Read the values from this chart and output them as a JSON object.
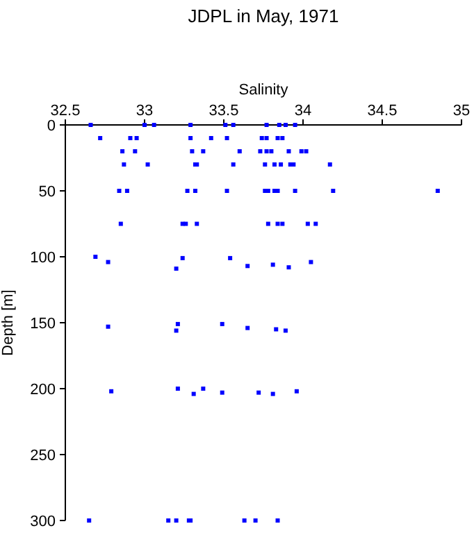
{
  "chart_data": {
    "type": "scatter",
    "title": "JDPL in May, 1971",
    "xlabel": "Salinity",
    "ylabel": "Depth [m]",
    "marker": "square",
    "grid": false,
    "xlim": [
      32.5,
      35
    ],
    "xticks": [
      32.5,
      33,
      33.5,
      34,
      34.5,
      35
    ],
    "ylim": [
      300,
      0
    ],
    "yticks": [
      0,
      50,
      100,
      150,
      200,
      250,
      300
    ],
    "series": [
      {
        "color": "#0000ff",
        "x": [
          32.66,
          33.0,
          33.06,
          33.29,
          33.51,
          33.56,
          33.77,
          33.85,
          33.89,
          33.95,
          32.72,
          32.91,
          32.95,
          33.29,
          33.42,
          33.52,
          33.74,
          33.77,
          33.84,
          33.87,
          32.86,
          32.94,
          33.3,
          33.37,
          33.6,
          33.73,
          33.77,
          33.8,
          33.91,
          33.99,
          34.02,
          32.87,
          33.02,
          33.32,
          33.33,
          33.56,
          33.76,
          33.82,
          33.86,
          33.92,
          33.94,
          34.17,
          32.84,
          32.89,
          33.27,
          33.32,
          33.52,
          33.76,
          33.78,
          33.82,
          33.84,
          33.95,
          34.19,
          34.85,
          32.85,
          33.24,
          33.26,
          33.33,
          33.78,
          33.84,
          33.87,
          34.03,
          34.08,
          32.69,
          32.77,
          33.2,
          33.24,
          33.54,
          33.65,
          33.81,
          33.91,
          34.05,
          32.77,
          33.2,
          33.21,
          33.49,
          33.65,
          33.83,
          33.89,
          32.79,
          33.21,
          33.31,
          33.37,
          33.49,
          33.72,
          33.81,
          33.96,
          32.65,
          33.15,
          33.2,
          33.28,
          33.29,
          33.63,
          33.7,
          33.84
        ],
        "values": [
          0,
          0,
          0,
          0,
          0,
          0,
          0,
          0,
          0,
          0,
          10,
          10,
          10,
          10,
          10,
          10,
          10,
          10,
          10,
          10,
          20,
          20,
          20,
          20,
          20,
          20,
          20,
          20,
          20,
          20,
          20,
          30,
          30,
          30,
          30,
          30,
          30,
          30,
          30,
          30,
          30,
          30,
          50,
          50,
          50,
          50,
          50,
          50,
          50,
          50,
          50,
          50,
          50,
          50,
          75,
          75,
          75,
          75,
          75,
          75,
          75,
          75,
          75,
          100,
          104,
          109,
          101,
          101,
          107,
          106,
          108,
          104,
          153,
          156,
          151,
          151,
          154,
          155,
          156,
          202,
          200,
          204,
          200,
          203,
          203,
          204,
          202,
          300,
          300,
          300,
          300,
          300,
          300,
          300,
          300
        ]
      }
    ]
  }
}
